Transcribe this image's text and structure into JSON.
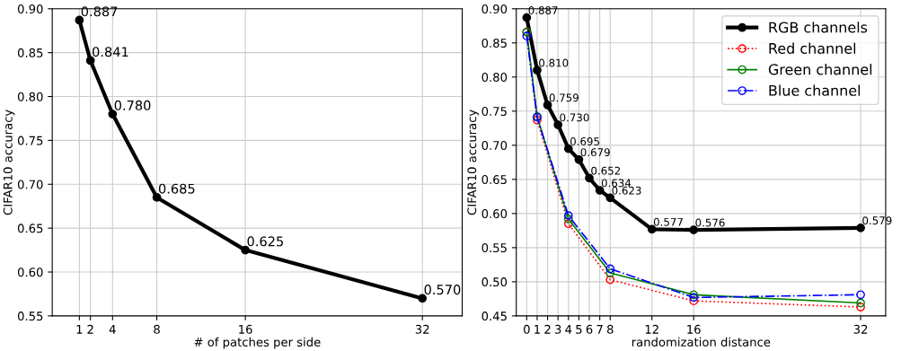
{
  "chart_data": [
    {
      "type": "line",
      "xlabel": "# of patches per side",
      "ylabel": "CIFAR10 accuracy",
      "xlim": [
        -1.45,
        35.6
      ],
      "xticks": [
        1,
        2,
        4,
        8,
        16,
        32
      ],
      "ylim": [
        0.55,
        0.9
      ],
      "yticks": [
        0.55,
        {
          "value": 0.6,
          "label": "0.60"
        },
        0.65,
        {
          "value": 0.7,
          "label": "0.70"
        },
        0.75,
        {
          "value": 0.8,
          "label": "0.80"
        },
        0.85,
        {
          "value": 0.9,
          "label": "0.90"
        }
      ],
      "grid": true,
      "legend": false,
      "series": [
        {
          "color": "#000000",
          "x": [
            1,
            2,
            4,
            8,
            16,
            32
          ],
          "values": [
            0.887,
            0.841,
            0.78,
            0.685,
            0.625,
            0.57
          ],
          "value_labels": [
            "0.887",
            "0.841",
            "0.780",
            "0.685",
            "0.625",
            "0.570"
          ],
          "marker": "circle",
          "line_style": "solid"
        }
      ]
    },
    {
      "type": "line",
      "xlabel": "randomization distance",
      "ylabel": "CIFAR10 accuracy",
      "xlim": [
        -1.0,
        34.4
      ],
      "xticks": [
        0,
        1,
        2,
        3,
        4,
        5,
        6,
        7,
        8,
        12,
        16,
        32
      ],
      "ylim": [
        0.45,
        0.9
      ],
      "yticks": [
        0.45,
        {
          "value": 0.5,
          "label": "0.50"
        },
        0.55,
        {
          "value": 0.6,
          "label": "0.60"
        },
        0.65,
        {
          "value": 0.7,
          "label": "0.70"
        },
        0.75,
        {
          "value": 0.8,
          "label": "0.80"
        },
        0.85,
        {
          "value": 0.9,
          "label": "0.90"
        }
      ],
      "grid": true,
      "legend": "top right",
      "series": [
        {
          "name": "RGB channels",
          "color": "#000000",
          "x": [
            0,
            1,
            2,
            3,
            4,
            5,
            6,
            7,
            8,
            12,
            16,
            32
          ],
          "values": [
            0.887,
            0.81,
            0.759,
            0.73,
            0.695,
            0.679,
            0.652,
            0.634,
            0.623,
            0.577,
            0.576,
            0.579
          ],
          "value_labels": [
            "0.887",
            "0.810",
            "0.759",
            "0.730",
            "0.695",
            "0.679",
            "0.652",
            "0.634",
            "0.623",
            "0.577",
            "0.576",
            "0.579"
          ],
          "marker": "circle",
          "line_style": "solid"
        },
        {
          "name": "Red channel",
          "color": "#ff0000",
          "x": [
            0,
            1,
            4,
            8,
            16,
            32
          ],
          "values": [
            0.866,
            0.737,
            0.585,
            0.503,
            0.472,
            0.463
          ],
          "marker": "circle",
          "line_style": "dotted"
        },
        {
          "name": "Green channel",
          "color": "#008000",
          "x": [
            0,
            1,
            4,
            8,
            16,
            32
          ],
          "values": [
            0.866,
            0.742,
            0.592,
            0.513,
            0.481,
            0.469
          ],
          "marker": "circle",
          "line_style": "solid"
        },
        {
          "name": "Blue channel",
          "color": "#0000ff",
          "x": [
            0,
            1,
            4,
            8,
            16,
            32
          ],
          "values": [
            0.86,
            0.741,
            0.597,
            0.519,
            0.477,
            0.481
          ],
          "marker": "circle",
          "line_style": "dashdot"
        }
      ]
    }
  ]
}
